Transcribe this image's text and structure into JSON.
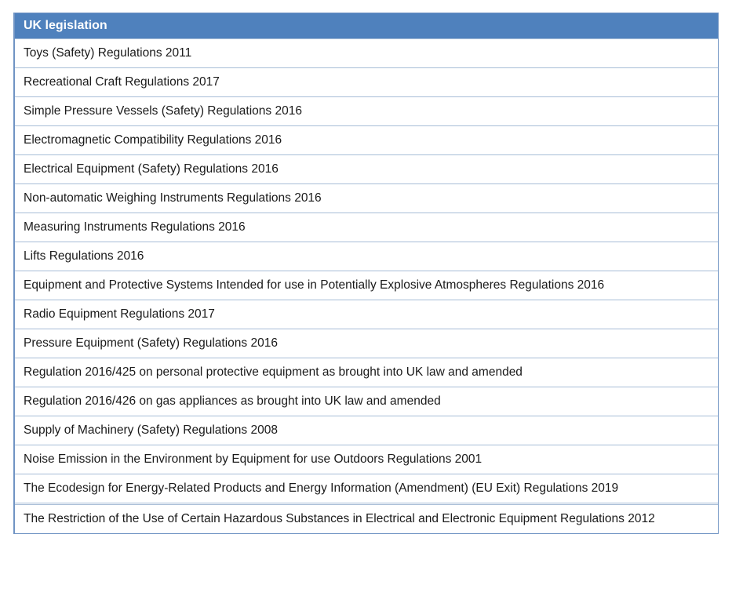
{
  "title": "UK legislation table",
  "table": {
    "header": "UK legislation",
    "rows": [
      "Toys (Safety) Regulations 2011",
      "Recreational Craft Regulations 2017",
      "Simple Pressure Vessels (Safety) Regulations 2016",
      "Electromagnetic Compatibility Regulations 2016",
      "Electrical Equipment (Safety) Regulations 2016",
      "Non-automatic Weighing Instruments Regulations 2016",
      "Measuring Instruments Regulations 2016",
      "Lifts Regulations 2016",
      "Equipment and Protective Systems Intended for use in Potentially Explosive Atmospheres Regulations 2016",
      "Radio Equipment Regulations 2017",
      "Pressure Equipment (Safety) Regulations 2016",
      "Regulation 2016/425 on personal protective equipment as brought into UK law and amended",
      "Regulation 2016/426 on gas appliances as brought into UK law and amended",
      "Supply of Machinery (Safety) Regulations 2008",
      "Noise Emission in the Environment by Equipment for use Outdoors Regulations 2001",
      "The Ecodesign for Energy-Related Products and Energy Information (Amendment) (EU Exit) Regulations 2019",
      "The Restriction of the Use of Certain Hazardous Substances in Electrical and Electronic Equipment Regulations 2012"
    ]
  },
  "colors": {
    "header_bg": "#4f81bd",
    "header_text": "#ffffff",
    "border_outer": "#7094c4",
    "border_inner": "#a7bdd6",
    "row_text": "#1a1a1a"
  }
}
